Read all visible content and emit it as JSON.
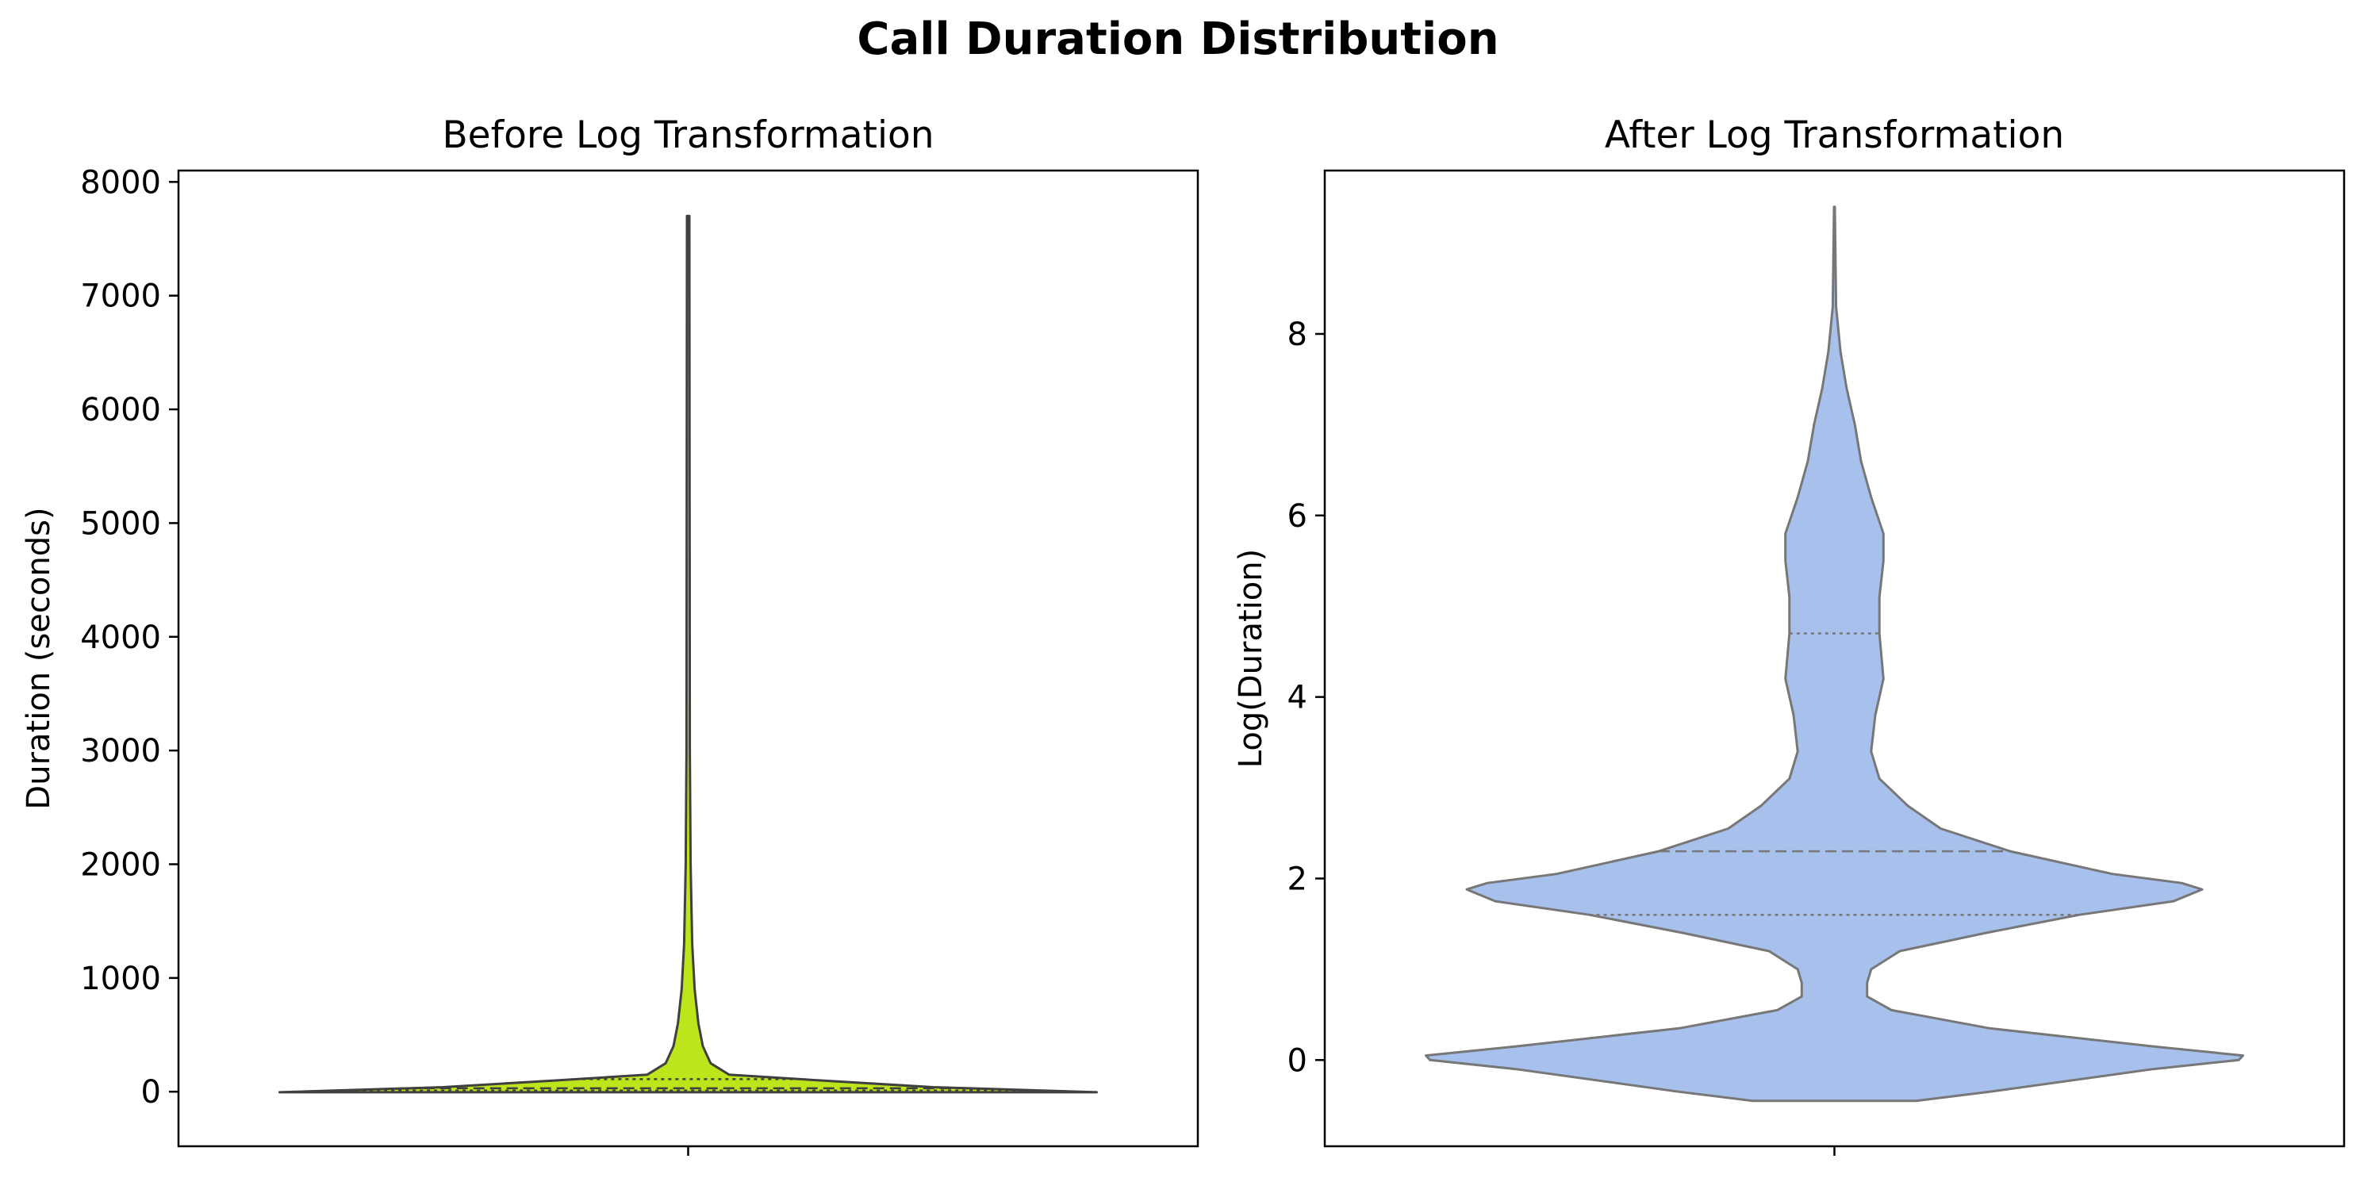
{
  "figure": {
    "title": "Call Duration Distribution"
  },
  "chart_data": [
    {
      "type": "violin",
      "title": "Before Log Transformation",
      "xlabel": "",
      "ylabel": "Duration (seconds)",
      "ylim": [
        -480,
        8100
      ],
      "yticks": [
        0,
        1000,
        2000,
        3000,
        4000,
        5000,
        6000,
        7000,
        8000
      ],
      "fill_color": "#bce51b",
      "edge_color": "#404040",
      "inner": "quartile",
      "quartiles": {
        "q1": 10,
        "median": 30,
        "q3": 110
      },
      "min": -5,
      "max": 7700,
      "density_profile": [
        {
          "y": -5,
          "half_width": 1.0
        },
        {
          "y": 40,
          "half_width": 0.6
        },
        {
          "y": 100,
          "half_width": 0.32
        },
        {
          "y": 150,
          "half_width": 0.1
        },
        {
          "y": 250,
          "half_width": 0.055
        },
        {
          "y": 400,
          "half_width": 0.036
        },
        {
          "y": 600,
          "half_width": 0.025
        },
        {
          "y": 900,
          "half_width": 0.016
        },
        {
          "y": 1300,
          "half_width": 0.01
        },
        {
          "y": 2000,
          "half_width": 0.006
        },
        {
          "y": 3000,
          "half_width": 0.004
        },
        {
          "y": 7700,
          "half_width": 0.003
        }
      ]
    },
    {
      "type": "violin",
      "title": "After Log Transformation",
      "xlabel": "",
      "ylabel": "Log(Duration)",
      "ylim": [
        -0.95,
        9.8
      ],
      "yticks": [
        0,
        2,
        4,
        6,
        8
      ],
      "fill_color": "#a7c1ec",
      "edge_color": "#777777",
      "inner": "quartile",
      "quartiles": {
        "q1": 1.6,
        "median": 2.3,
        "q3": 4.7
      },
      "min": -0.45,
      "max": 9.4,
      "density_profile": [
        {
          "y": -0.45,
          "half_width": 0.2
        },
        {
          "y": -0.35,
          "half_width": 0.38
        },
        {
          "y": -0.1,
          "half_width": 0.78
        },
        {
          "y": 0.0,
          "half_width": 0.99
        },
        {
          "y": 0.05,
          "half_width": 1.0
        },
        {
          "y": 0.15,
          "half_width": 0.78
        },
        {
          "y": 0.35,
          "half_width": 0.38
        },
        {
          "y": 0.55,
          "half_width": 0.14
        },
        {
          "y": 0.7,
          "half_width": 0.08
        },
        {
          "y": 0.85,
          "half_width": 0.08
        },
        {
          "y": 1.0,
          "half_width": 0.09
        },
        {
          "y": 1.2,
          "half_width": 0.16
        },
        {
          "y": 1.4,
          "half_width": 0.37
        },
        {
          "y": 1.6,
          "half_width": 0.6
        },
        {
          "y": 1.75,
          "half_width": 0.83
        },
        {
          "y": 1.88,
          "half_width": 0.9
        },
        {
          "y": 1.95,
          "half_width": 0.85
        },
        {
          "y": 2.05,
          "half_width": 0.68
        },
        {
          "y": 2.3,
          "half_width": 0.43
        },
        {
          "y": 2.55,
          "half_width": 0.26
        },
        {
          "y": 2.8,
          "half_width": 0.18
        },
        {
          "y": 3.1,
          "half_width": 0.11
        },
        {
          "y": 3.4,
          "half_width": 0.09
        },
        {
          "y": 3.8,
          "half_width": 0.1
        },
        {
          "y": 4.2,
          "half_width": 0.12
        },
        {
          "y": 4.7,
          "half_width": 0.11
        },
        {
          "y": 5.1,
          "half_width": 0.11
        },
        {
          "y": 5.5,
          "half_width": 0.12
        },
        {
          "y": 5.8,
          "half_width": 0.12
        },
        {
          "y": 6.2,
          "half_width": 0.09
        },
        {
          "y": 6.6,
          "half_width": 0.065
        },
        {
          "y": 7.0,
          "half_width": 0.05
        },
        {
          "y": 7.4,
          "half_width": 0.03
        },
        {
          "y": 7.8,
          "half_width": 0.015
        },
        {
          "y": 8.3,
          "half_width": 0.004
        },
        {
          "y": 9.4,
          "half_width": 0.001
        }
      ]
    }
  ]
}
